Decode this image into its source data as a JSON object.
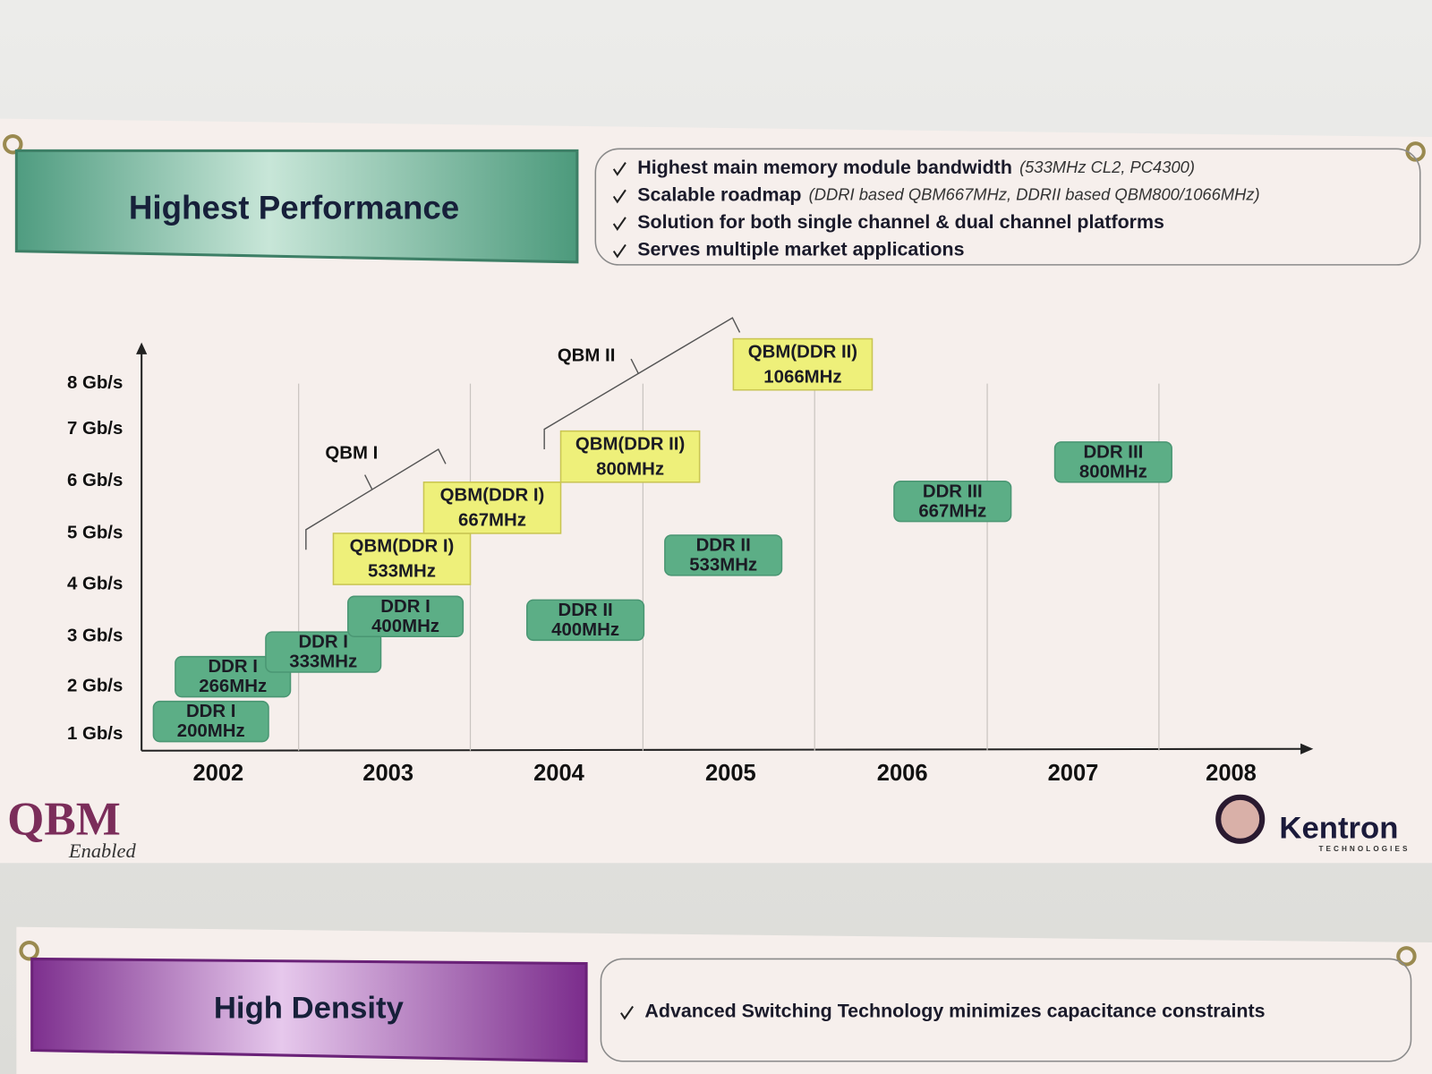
{
  "banner_top": {
    "title": "Highest Performance",
    "bullets": [
      {
        "text": "Highest main memory module bandwidth",
        "note": "(533MHz CL2, PC4300)"
      },
      {
        "text": "Scalable roadmap",
        "note": "(DDRI based QBM667MHz, DDRII based QBM800/1066MHz)"
      },
      {
        "text": "Solution for both single channel & dual channel platforms"
      },
      {
        "text": "Serves multiple market applications"
      }
    ]
  },
  "roadmap": {
    "y_labels": [
      "8 Gb/s",
      "7 Gb/s",
      "6 Gb/s",
      "5 Gb/s",
      "4 Gb/s",
      "3 Gb/s",
      "2 Gb/s",
      "1 Gb/s"
    ],
    "x_labels": [
      "2002",
      "2003",
      "2004",
      "2005",
      "2006",
      "2007",
      "2008"
    ],
    "boxes": [
      {
        "line1": "DDR I",
        "line2": "200MHz"
      },
      {
        "line1": "DDR I",
        "line2": "266MHz"
      },
      {
        "line1": "DDR I",
        "line2": "333MHz"
      },
      {
        "line1": "DDR I",
        "line2": "400MHz"
      },
      {
        "line1": "QBM(DDR I)",
        "line2": "533MHz"
      },
      {
        "line1": "QBM(DDR I)",
        "line2": "667MHz"
      },
      {
        "line1": "QBM(DDR II)",
        "line2": "800MHz"
      },
      {
        "line1": "QBM(DDR II)",
        "line2": "1066MHz"
      },
      {
        "line1": "DDR II",
        "line2": "400MHz"
      },
      {
        "line1": "DDR II",
        "line2": "533MHz"
      },
      {
        "line1": "DDR III",
        "line2": "667MHz"
      },
      {
        "line1": "DDR III",
        "line2": "800MHz"
      }
    ],
    "groups": [
      "QBM I",
      "QBM II"
    ]
  },
  "logos": {
    "left": "QBM",
    "left_sub": "Enabled",
    "right": "Kentron",
    "right_sub": "TECHNOLOGIES"
  },
  "banner_bottom": {
    "title": "High Density",
    "bullets": [
      {
        "text": "Advanced Switching Technology minimizes capacitance constraints"
      }
    ]
  }
}
